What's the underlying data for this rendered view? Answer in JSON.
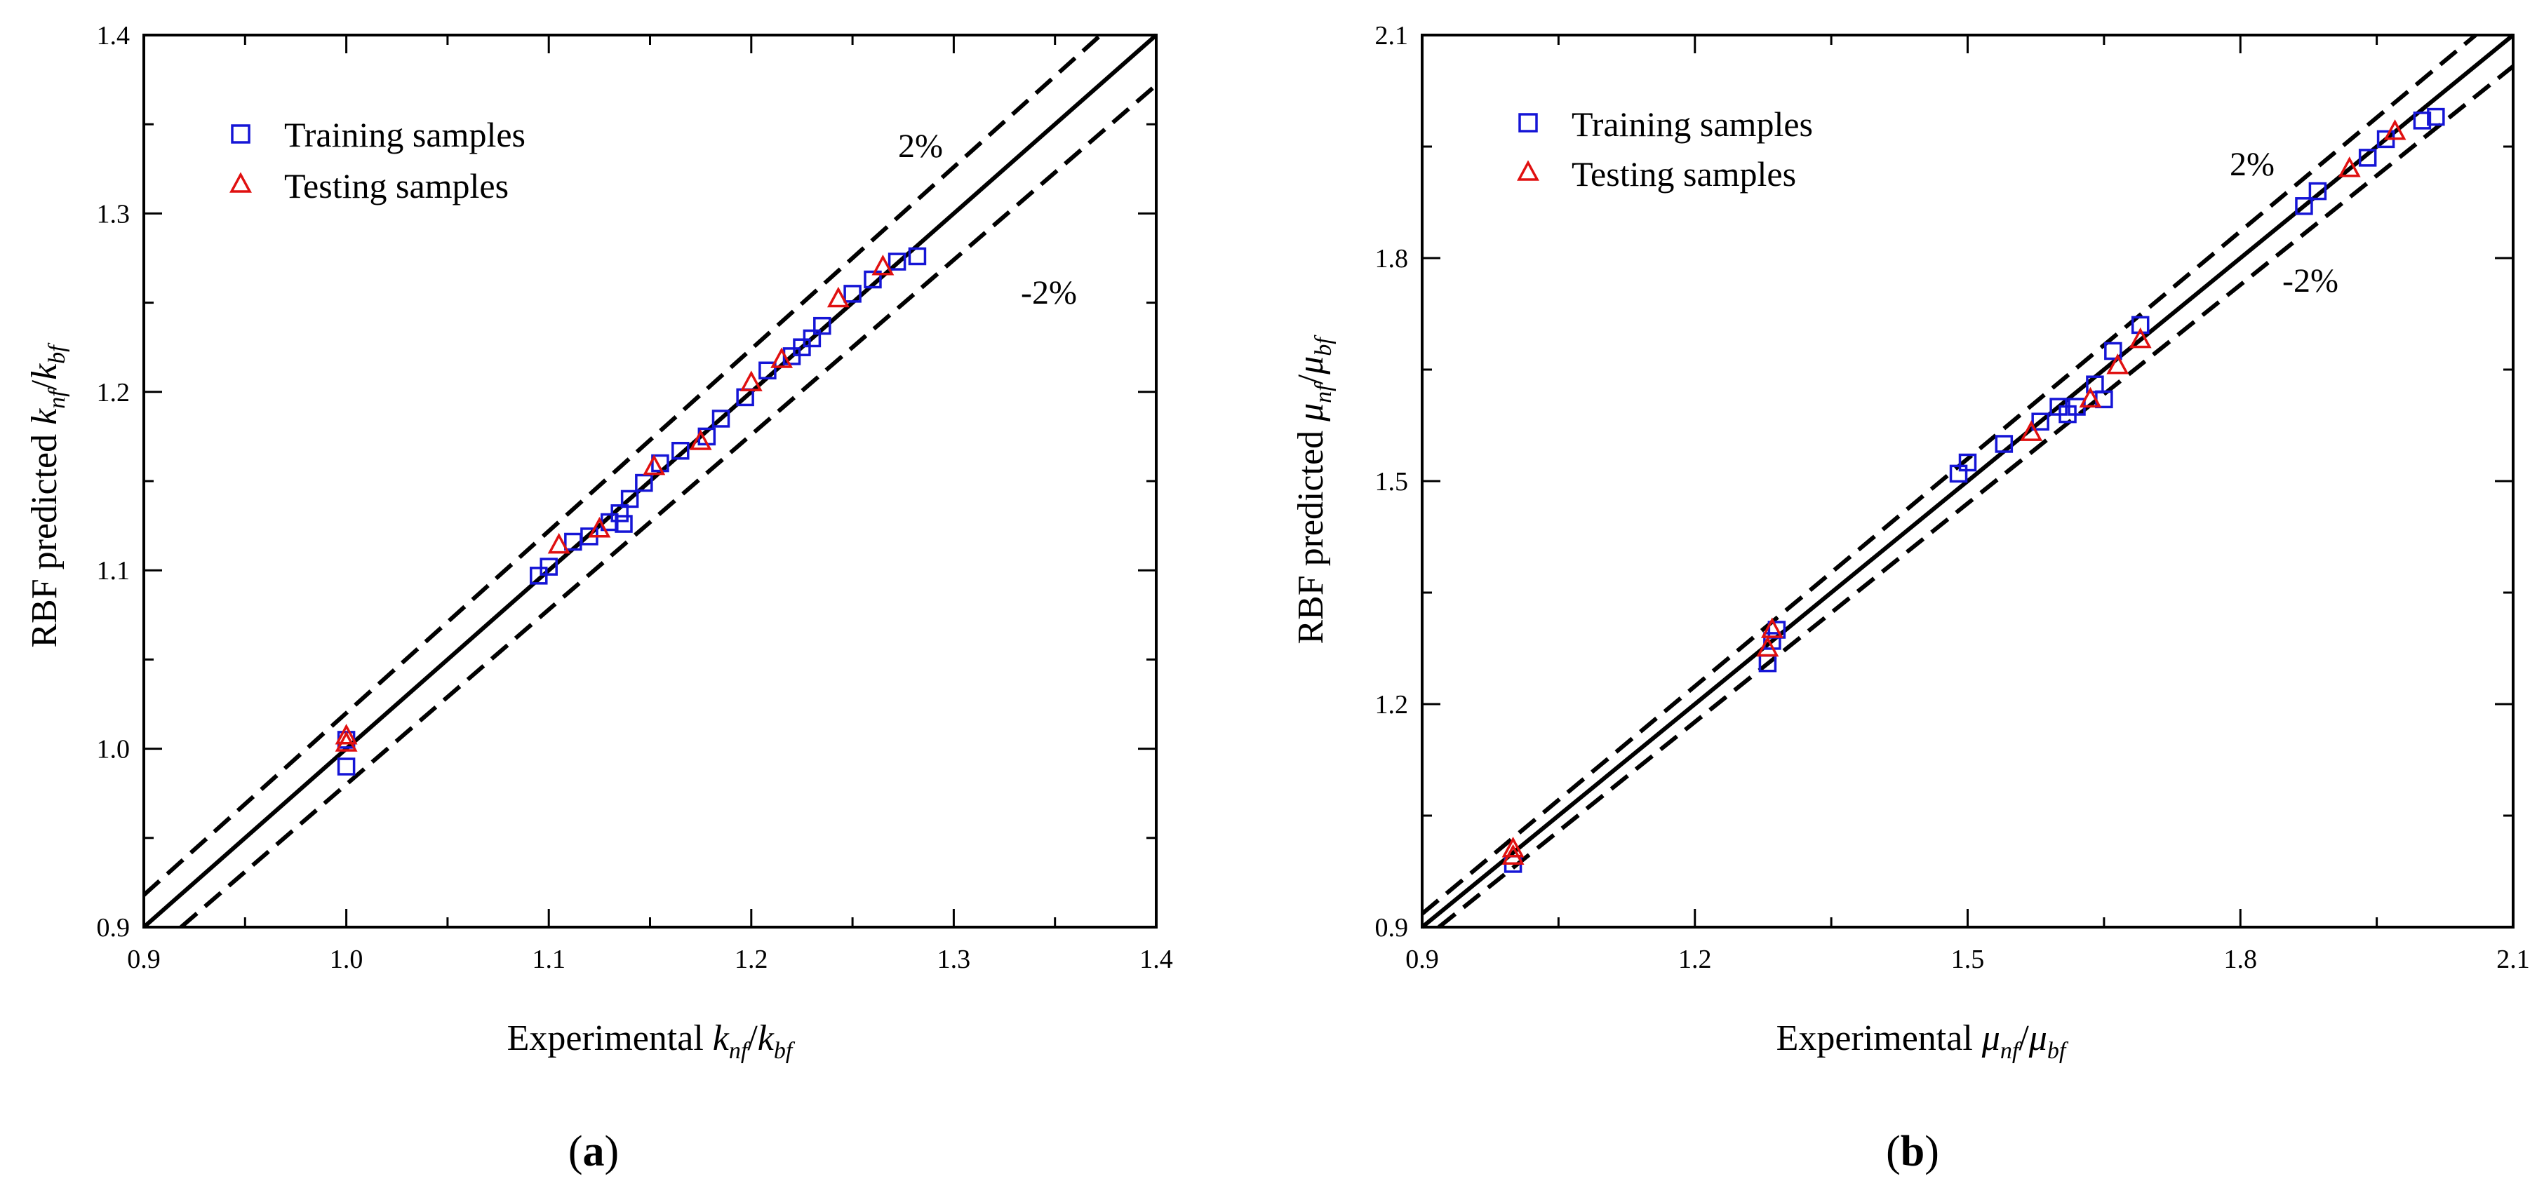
{
  "chart_data": [
    {
      "type": "scatter",
      "panel_label": "(a)",
      "ylabel": "RBF predicted k_nf/k_bf",
      "xlabel": "Experimental k_nf/k_bf",
      "xlim": [
        0.9,
        1.4
      ],
      "ylim": [
        0.9,
        1.4
      ],
      "xticks": [
        "0.9",
        "1.0",
        "1.1",
        "1.2",
        "1.3",
        "1.4"
      ],
      "yticks": [
        "0.9",
        "1.0",
        "1.1",
        "1.2",
        "1.3",
        "1.4"
      ],
      "legend_position": "top-left",
      "series": [
        {
          "name": "Training samples",
          "marker": "square",
          "color": "#1515d6",
          "points": [
            [
              1.0,
              1.005
            ],
            [
              1.0,
              0.99
            ],
            [
              1.095,
              1.097
            ],
            [
              1.1,
              1.102
            ],
            [
              1.112,
              1.116
            ],
            [
              1.12,
              1.119
            ],
            [
              1.13,
              1.127
            ],
            [
              1.135,
              1.132
            ],
            [
              1.137,
              1.126
            ],
            [
              1.14,
              1.14
            ],
            [
              1.147,
              1.149
            ],
            [
              1.155,
              1.16
            ],
            [
              1.165,
              1.167
            ],
            [
              1.178,
              1.175
            ],
            [
              1.185,
              1.185
            ],
            [
              1.197,
              1.197
            ],
            [
              1.208,
              1.212
            ],
            [
              1.22,
              1.22
            ],
            [
              1.225,
              1.225
            ],
            [
              1.23,
              1.23
            ],
            [
              1.235,
              1.237
            ],
            [
              1.25,
              1.255
            ],
            [
              1.26,
              1.263
            ],
            [
              1.272,
              1.273
            ],
            [
              1.282,
              1.276
            ]
          ]
        },
        {
          "name": "Testing samples",
          "marker": "triangle",
          "color": "#e01010",
          "points": [
            [
              1.0,
              1.007
            ],
            [
              1.0,
              1.003
            ],
            [
              1.105,
              1.114
            ],
            [
              1.125,
              1.123
            ],
            [
              1.152,
              1.158
            ],
            [
              1.175,
              1.172
            ],
            [
              1.2,
              1.205
            ],
            [
              1.215,
              1.218
            ],
            [
              1.243,
              1.252
            ],
            [
              1.265,
              1.27
            ]
          ]
        }
      ],
      "reference_lines": [
        {
          "label": "",
          "style": "solid",
          "slope": 1.0
        },
        {
          "label": "2%",
          "style": "dashed",
          "slope": 1.02
        },
        {
          "label": "-2%",
          "style": "dashed",
          "slope": 0.98
        }
      ]
    },
    {
      "type": "scatter",
      "panel_label": "(b)",
      "ylabel": "RBF predicted μ_nf/μ_bf",
      "xlabel": "Experimental μ_nf/μ_bf",
      "xlim": [
        0.9,
        2.1
      ],
      "ylim": [
        0.9,
        2.1
      ],
      "xticks": [
        "0.9",
        "1.2",
        "1.5",
        "1.8",
        "2.1"
      ],
      "yticks": [
        "0.9",
        "1.2",
        "1.5",
        "1.8",
        "2.1"
      ],
      "legend_position": "top-left",
      "series": [
        {
          "name": "Training samples",
          "marker": "square",
          "color": "#1515d6",
          "points": [
            [
              1.0,
              0.985
            ],
            [
              1.28,
              1.255
            ],
            [
              1.285,
              1.285
            ],
            [
              1.29,
              1.3
            ],
            [
              1.49,
              1.51
            ],
            [
              1.5,
              1.525
            ],
            [
              1.54,
              1.55
            ],
            [
              1.58,
              1.58
            ],
            [
              1.6,
              1.6
            ],
            [
              1.61,
              1.59
            ],
            [
              1.62,
              1.6
            ],
            [
              1.64,
              1.63
            ],
            [
              1.65,
              1.61
            ],
            [
              1.66,
              1.675
            ],
            [
              1.69,
              1.71
            ],
            [
              1.87,
              1.87
            ],
            [
              1.885,
              1.89
            ],
            [
              1.94,
              1.935
            ],
            [
              1.96,
              1.96
            ],
            [
              2.0,
              1.985
            ],
            [
              2.015,
              1.99
            ]
          ]
        },
        {
          "name": "Testing samples",
          "marker": "triangle",
          "color": "#e01010",
          "points": [
            [
              1.0,
              1.005
            ],
            [
              1.0,
              0.995
            ],
            [
              1.28,
              1.275
            ],
            [
              1.285,
              1.3
            ],
            [
              1.57,
              1.565
            ],
            [
              1.635,
              1.61
            ],
            [
              1.665,
              1.655
            ],
            [
              1.69,
              1.69
            ],
            [
              1.92,
              1.92
            ],
            [
              1.97,
              1.97
            ]
          ]
        }
      ],
      "reference_lines": [
        {
          "label": "",
          "style": "solid",
          "slope": 1.0
        },
        {
          "label": "2%",
          "style": "dashed",
          "slope": 1.02
        },
        {
          "label": "-2%",
          "style": "dashed",
          "slope": 0.98
        }
      ]
    }
  ],
  "label_parts": {
    "a_y_prefix": "RBF predicted ",
    "a_y_sym1": "k",
    "a_y_sub1": "nf",
    "a_y_sep": "/",
    "a_y_sym2": "k",
    "a_y_sub2": "bf",
    "a_x_prefix": "Experimental ",
    "a_x_sym1": "k",
    "a_x_sub1": "nf",
    "a_x_sep": "/",
    "a_x_sym2": "k",
    "a_x_sub2": "bf",
    "b_y_prefix": "RBF predicted ",
    "b_y_sym1": "μ",
    "b_y_sub1": "nf",
    "b_y_sep": "/",
    "b_y_sym2": "μ",
    "b_y_sub2": "bf",
    "b_x_prefix": "Experimental ",
    "b_x_sym1": "μ",
    "b_x_sub1": "nf",
    "b_x_sep": "/",
    "b_x_sym2": "μ",
    "b_x_sub2": "bf",
    "panel_open": "(",
    "panel_close": ")",
    "panel_a_letter": "a",
    "panel_b_letter": "b"
  }
}
